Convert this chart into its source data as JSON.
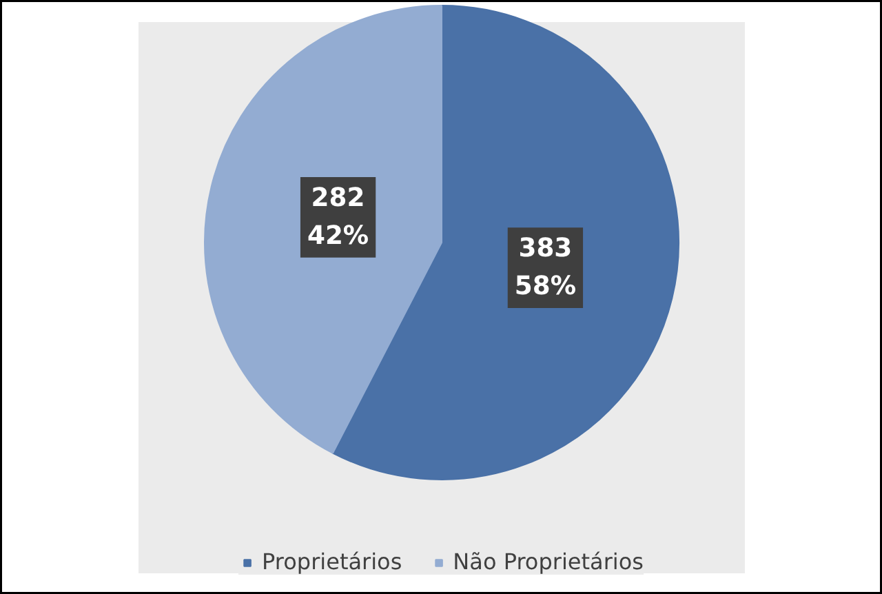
{
  "chart_data": {
    "type": "pie",
    "categories": [
      "Proprietários",
      "Não Proprietários"
    ],
    "values": [
      383,
      282
    ],
    "colors": [
      "#4a71a7",
      "#93acd2"
    ],
    "value_labels": [
      "383\n58%",
      "282\n42%"
    ],
    "legend": "bottom"
  }
}
